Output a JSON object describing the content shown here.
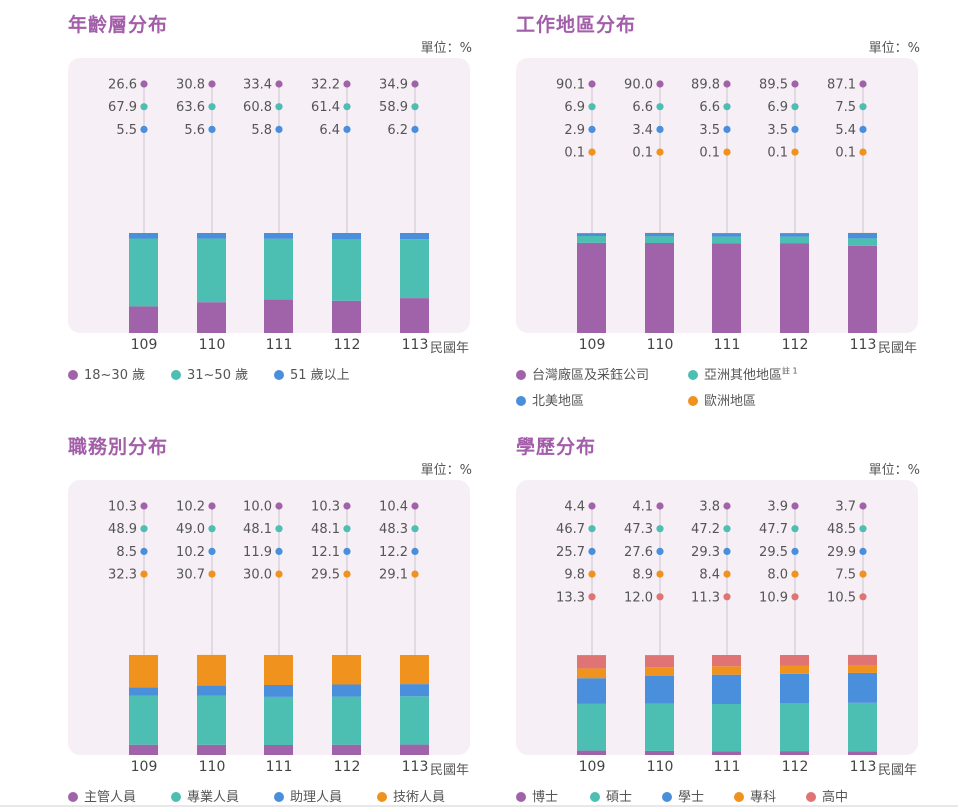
{
  "chart_data": [
    {
      "type": "bar",
      "title": "年齡層分布",
      "unit": "單位：%",
      "xunit": "民國年",
      "categories": [
        "109",
        "110",
        "111",
        "112",
        "113"
      ],
      "colors": [
        "#a063a9",
        "#4dbfb2",
        "#4a8fdc"
      ],
      "series": [
        {
          "name": "18~30 歲",
          "values": [
            "26.6",
            "30.8",
            "33.4",
            "32.2",
            "34.9"
          ]
        },
        {
          "name": "31~50 歲",
          "values": [
            "67.9",
            "63.6",
            "60.8",
            "61.4",
            "58.9"
          ]
        },
        {
          "name": "51 歲以上",
          "values": [
            "5.5",
            "5.6",
            "5.8",
            "6.4",
            "6.2"
          ]
        }
      ],
      "legend": [
        {
          "label": "18~30 歲"
        },
        {
          "label": "31~50 歲"
        },
        {
          "label": "51 歲以上"
        }
      ]
    },
    {
      "type": "bar",
      "title": "工作地區分布",
      "unit": "單位：%",
      "xunit": "民國年",
      "categories": [
        "109",
        "110",
        "111",
        "112",
        "113"
      ],
      "colors": [
        "#a063a9",
        "#4dbfb2",
        "#4a8fdc",
        "#f0921e"
      ],
      "series": [
        {
          "name": "台灣廠區及采鈺公司",
          "values": [
            "90.1",
            "90.0",
            "89.8",
            "89.5",
            "87.1"
          ]
        },
        {
          "name": "亞洲其他地區",
          "values": [
            "6.9",
            "6.6",
            "6.6",
            "6.9",
            "7.5"
          ]
        },
        {
          "name": "北美地區",
          "values": [
            "2.9",
            "3.4",
            "3.5",
            "3.5",
            "5.4"
          ]
        },
        {
          "name": "歐洲地區",
          "values": [
            "0.1",
            "0.1",
            "0.1",
            "0.1",
            "0.1"
          ]
        }
      ],
      "legend": [
        {
          "label": "台灣廠區及采鈺公司"
        },
        {
          "label": "亞洲其他地區",
          "note": "註 1"
        },
        {
          "label": "北美地區"
        },
        {
          "label": "歐洲地區"
        }
      ]
    },
    {
      "type": "bar",
      "title": "職務別分布",
      "unit": "單位：%",
      "xunit": "民國年",
      "categories": [
        "109",
        "110",
        "111",
        "112",
        "113"
      ],
      "colors": [
        "#a063a9",
        "#4dbfb2",
        "#4a8fdc",
        "#f0921e"
      ],
      "series": [
        {
          "name": "主管人員",
          "values": [
            "10.3",
            "10.2",
            "10.0",
            "10.3",
            "10.4"
          ]
        },
        {
          "name": "專業人員",
          "values": [
            "48.9",
            "49.0",
            "48.1",
            "48.1",
            "48.3"
          ]
        },
        {
          "name": "助理人員",
          "values": [
            "8.5",
            "10.2",
            "11.9",
            "12.1",
            "12.2"
          ]
        },
        {
          "name": "技術人員",
          "values": [
            "32.3",
            "30.7",
            "30.0",
            "29.5",
            "29.1"
          ]
        }
      ],
      "legend": [
        {
          "label": "主管人員"
        },
        {
          "label": "專業人員"
        },
        {
          "label": "助理人員"
        },
        {
          "label": "技術人員"
        }
      ]
    },
    {
      "type": "bar",
      "title": "學歷分布",
      "unit": "單位：%",
      "xunit": "民國年",
      "categories": [
        "109",
        "110",
        "111",
        "112",
        "113"
      ],
      "colors": [
        "#a063a9",
        "#4dbfb2",
        "#4a8fdc",
        "#f0921e",
        "#e07474"
      ],
      "series": [
        {
          "name": "博士",
          "values": [
            "4.4",
            "4.1",
            "3.8",
            "3.9",
            "3.7"
          ]
        },
        {
          "name": "碩士",
          "values": [
            "46.7",
            "47.3",
            "47.2",
            "47.7",
            "48.5"
          ]
        },
        {
          "name": "學士",
          "values": [
            "25.7",
            "27.6",
            "29.3",
            "29.5",
            "29.9"
          ]
        },
        {
          "name": "專科",
          "values": [
            "9.8",
            "8.9",
            "8.4",
            "8.0",
            "7.5"
          ]
        },
        {
          "name": "高中",
          "values": [
            "13.3",
            "12.0",
            "11.3",
            "10.9",
            "10.5"
          ]
        }
      ],
      "legend": [
        {
          "label": "博士"
        },
        {
          "label": "碩士"
        },
        {
          "label": "學士"
        },
        {
          "label": "專科"
        },
        {
          "label": "高中"
        }
      ]
    }
  ]
}
